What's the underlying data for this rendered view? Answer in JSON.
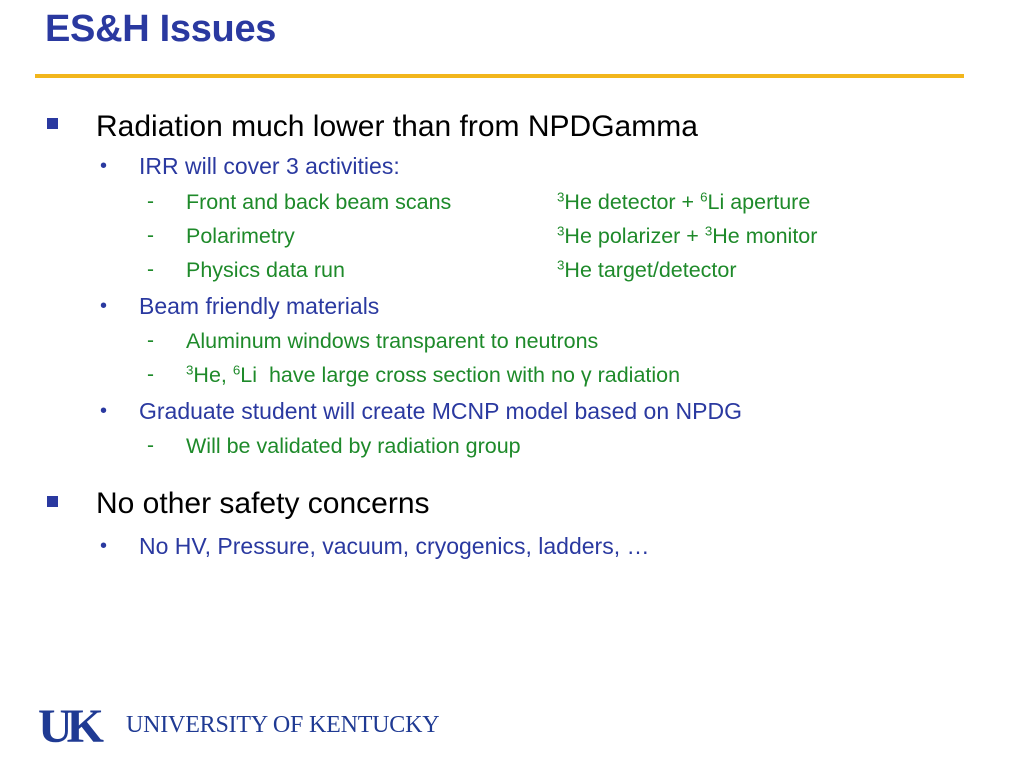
{
  "slide": {
    "title": "ES&H Issues"
  },
  "bullets": {
    "b1": "Radiation much lower than from NPDGamma",
    "b1_1": "IRR will cover 3 activities:",
    "b1_1_rows": [
      {
        "activity": "Front and back beam scans",
        "iso1": "3",
        "part1": "He detector + ",
        "iso2": "6",
        "part2": "Li aperture"
      },
      {
        "activity": "Polarimetry",
        "iso1": "3",
        "part1": "He polarizer + ",
        "iso2": "3",
        "part2": "He monitor"
      },
      {
        "activity": "Physics data run",
        "iso1": "3",
        "part1": "He target/detector"
      }
    ],
    "b1_2": "Beam friendly materials",
    "b1_2_1": "Aluminum windows transparent to neutrons",
    "b1_2_2": {
      "iso1": "3",
      "part1": "He, ",
      "iso2": "6",
      "part2": "Li  have large cross section with no γ radiation"
    },
    "b1_3": "Graduate student will create MCNP model based on NPDG",
    "b1_3_1": "Will be validated by radiation group",
    "b2": "No other safety concerns",
    "b2_1": "No HV, Pressure, vacuum, cryogenics, ladders, …"
  },
  "markers": {
    "level2": "•",
    "level3": "-"
  },
  "footer": {
    "logo_mark": "UK",
    "university": "UNIVERSITY OF KENTUCKY"
  },
  "colors": {
    "title": "#2a39a0",
    "accent_rule": "#f2b61c",
    "level1": "#000000",
    "level2": "#2a39a0",
    "level3": "#1e8a2a",
    "logo": "#1f3a93"
  }
}
